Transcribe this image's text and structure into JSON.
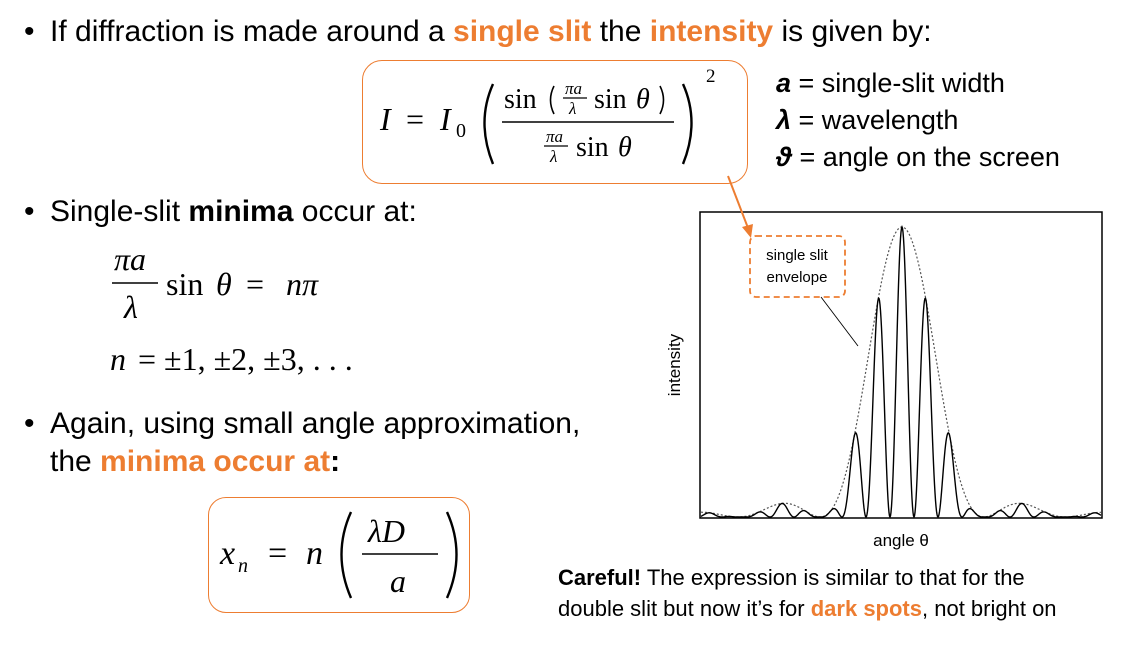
{
  "bullets": {
    "b1": {
      "pre": "If diffraction is made around a ",
      "hl1": "single slit",
      "mid": " the ",
      "hl2": "intensity",
      "post": " is given by:"
    },
    "b2": {
      "pre": "Single-slit ",
      "bold": "minima",
      "post": " occur at:"
    },
    "b3": {
      "line1": "Again, using small angle approximation,",
      "pre": "the ",
      "hl": "minima occur at",
      "post": ":"
    }
  },
  "legend": [
    {
      "sym": "a",
      "text": " = single-slit width"
    },
    {
      "sym": "λ",
      "text": " = wavelength"
    },
    {
      "sym": "ϑ",
      "text": " = angle on the screen"
    }
  ],
  "graph": {
    "ylabel": "intensity",
    "xlabel": "angle θ",
    "annotation_line1": "single slit",
    "annotation_line2": "envelope"
  },
  "note": {
    "bold": "Careful!",
    "line1_rest": " The expression is similar to that for the",
    "line2_pre": "double slit but now it’s for ",
    "line2_hl": "dark spots",
    "line2_post": ", not bright on"
  },
  "colors": {
    "accent": "#ed7d31",
    "text": "#000000"
  }
}
